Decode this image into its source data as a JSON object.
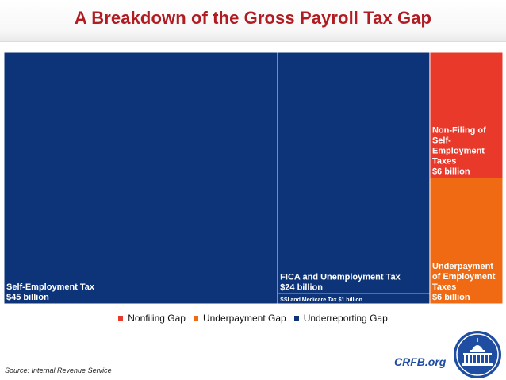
{
  "header": {
    "title": "A Breakdown of the Gross Payroll Tax Gap"
  },
  "chart_data": {
    "type": "treemap",
    "title": "A Breakdown of the Gross Payroll Tax Gap",
    "unit": "billion dollars",
    "nodes": [
      {
        "label": "Self-Employment Tax",
        "value_label": "$45 billion",
        "value": 45,
        "category": "underreporting"
      },
      {
        "label": "FICA and Unemployment Tax",
        "value_label": "$24 billion",
        "value": 24,
        "category": "underreporting"
      },
      {
        "label": "SSI and Medicare Tax",
        "value_label": "$1 billion",
        "value": 1,
        "category": "underreporting",
        "text": "SSI and Medicare Tax $1 billion"
      },
      {
        "label": "Non-Filing of Self-Employment Taxes",
        "value_label": "$6 billion",
        "value": 6,
        "category": "nonfiling",
        "lines": [
          "Non-Filing of",
          "Self-",
          "Employment",
          "Taxes"
        ]
      },
      {
        "label": "Underpayment of Employment Taxes",
        "value_label": "$6 billion",
        "value": 6,
        "category": "underpayment",
        "lines": [
          "Underpayment",
          "of Employment",
          "Taxes"
        ]
      }
    ],
    "legend": {
      "placement": "bottom",
      "items": [
        {
          "key": "nonfiling",
          "label": "Nonfiling Gap",
          "color": "#e8392b"
        },
        {
          "key": "underpayment",
          "label": "Underpayment Gap",
          "color": "#ef6a12"
        },
        {
          "key": "underreporting",
          "label": "Underreporting Gap",
          "color": "#0d3479"
        }
      ]
    }
  },
  "footer": {
    "source": "Source: Internal Revenue Service",
    "site": "CRFB.org"
  },
  "colors": {
    "title": "#b01c22",
    "site": "#1f4da1",
    "underreporting": "#0d3479",
    "nonfiling": "#e8392b",
    "underpayment": "#ef6a12"
  }
}
